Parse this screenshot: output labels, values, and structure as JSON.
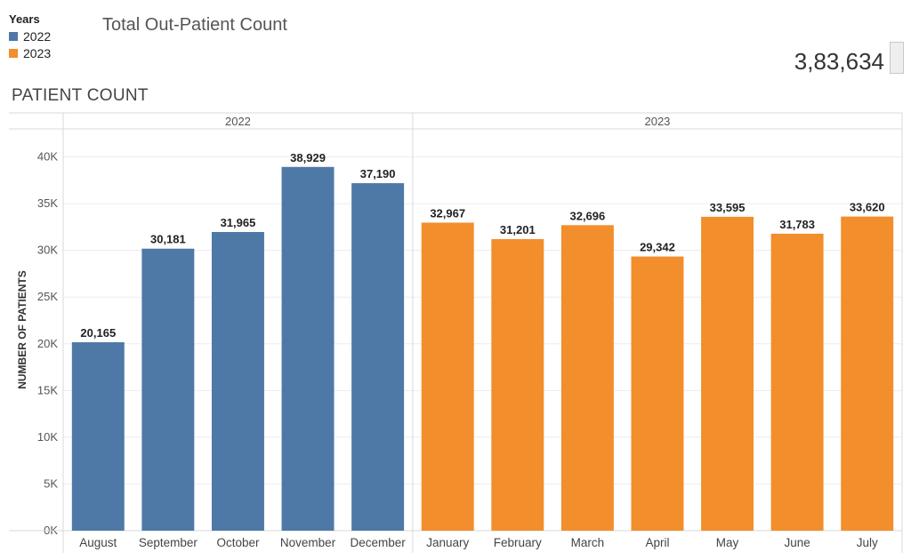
{
  "legend": {
    "title": "Years",
    "items": [
      {
        "label": "2022",
        "color": "#4e79a7"
      },
      {
        "label": "2023",
        "color": "#f28e2b"
      }
    ]
  },
  "kpi": {
    "title": "Total Out-Patient Count",
    "value": "3,83,634"
  },
  "chart_data": {
    "type": "bar",
    "title": "PATIENT COUNT",
    "ylabel": "NUMBER OF PATIENTS",
    "xlabel": "",
    "ylim": [
      0,
      43000
    ],
    "yticks": [
      {
        "value": 0,
        "label": "0K"
      },
      {
        "value": 5000,
        "label": "5K"
      },
      {
        "value": 10000,
        "label": "10K"
      },
      {
        "value": 15000,
        "label": "15K"
      },
      {
        "value": 20000,
        "label": "20K"
      },
      {
        "value": 25000,
        "label": "25K"
      },
      {
        "value": 30000,
        "label": "30K"
      },
      {
        "value": 35000,
        "label": "35K"
      },
      {
        "value": 40000,
        "label": "40K"
      }
    ],
    "grid": true,
    "panels": [
      {
        "name": "2022",
        "color": "#4e79a7",
        "categories": [
          "August",
          "September",
          "October",
          "November",
          "December"
        ],
        "values": [
          20165,
          30181,
          31965,
          38929,
          37190
        ],
        "labels": [
          "20,165",
          "30,181",
          "31,965",
          "38,929",
          "37,190"
        ]
      },
      {
        "name": "2023",
        "color": "#f28e2b",
        "categories": [
          "January",
          "February",
          "March",
          "April",
          "May",
          "June",
          "July"
        ],
        "values": [
          32967,
          31201,
          32696,
          29342,
          33595,
          31783,
          33620
        ],
        "labels": [
          "32,967",
          "31,201",
          "32,696",
          "29,342",
          "33,595",
          "31,783",
          "33,620"
        ]
      }
    ]
  }
}
